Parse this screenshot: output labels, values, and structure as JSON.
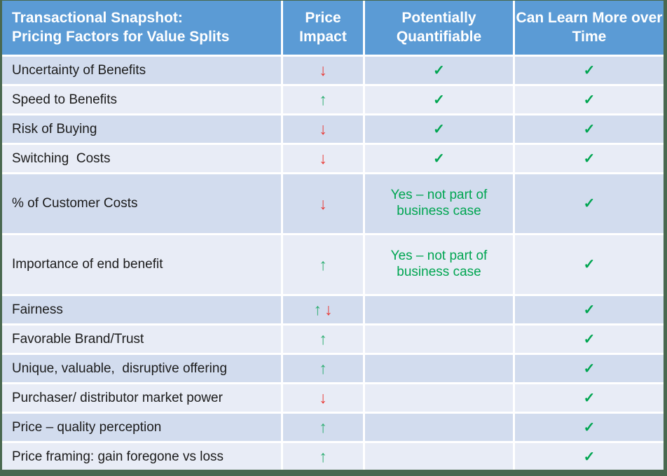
{
  "colors": {
    "header_blue": "#5B9BD5",
    "band_dark": "#D2DCEE",
    "band_light": "#E8ECF6",
    "green_text": "#00A551",
    "arrow_green": "#2EAE72",
    "arrow_red": "#E93B36",
    "frame_green": "#49684F"
  },
  "table": {
    "check_glyph": "✓",
    "header": {
      "factor": "Transactional Snapshot:\nPricing Factors for Value Splits",
      "price_impact": "Price Impact",
      "quantifiable": "Potentially Quantifiable",
      "learn_more": "Can Learn More over Time"
    },
    "rows": [
      {
        "factor": "Uncertainty of Benefits",
        "impact": [
          {
            "glyph": "↓",
            "tone": "red"
          }
        ],
        "quantifiable": "check",
        "learn_more": "check"
      },
      {
        "factor": "Speed to Benefits",
        "impact": [
          {
            "glyph": "↑",
            "tone": "green"
          }
        ],
        "quantifiable": "check",
        "learn_more": "check"
      },
      {
        "factor": "Risk of Buying",
        "impact": [
          {
            "glyph": "↓",
            "tone": "red"
          }
        ],
        "quantifiable": "check",
        "learn_more": "check"
      },
      {
        "factor": "Switching  Costs",
        "impact": [
          {
            "glyph": "↓",
            "tone": "red"
          }
        ],
        "quantifiable": "check",
        "learn_more": "check"
      },
      {
        "factor": "% of Customer Costs",
        "impact": [
          {
            "glyph": "↓",
            "tone": "red"
          }
        ],
        "quantifiable": "Yes – not part of business case",
        "learn_more": "check",
        "tall": true
      },
      {
        "factor": "Importance of end benefit",
        "impact": [
          {
            "glyph": "↑",
            "tone": "green"
          }
        ],
        "quantifiable": "Yes – not part of business case",
        "learn_more": "check",
        "tall": true
      },
      {
        "factor": "Fairness",
        "impact": [
          {
            "glyph": "↑",
            "tone": "green"
          },
          {
            "glyph": "↓",
            "tone": "red"
          }
        ],
        "quantifiable": "",
        "learn_more": "check"
      },
      {
        "factor": "Favorable Brand/Trust",
        "impact": [
          {
            "glyph": "↑",
            "tone": "green"
          }
        ],
        "quantifiable": "",
        "learn_more": "check"
      },
      {
        "factor": "Unique, valuable,  disruptive offering",
        "impact": [
          {
            "glyph": "↑",
            "tone": "green"
          }
        ],
        "quantifiable": "",
        "learn_more": "check"
      },
      {
        "factor": "Purchaser/ distributor market power",
        "impact": [
          {
            "glyph": "↓",
            "tone": "red"
          }
        ],
        "quantifiable": "",
        "learn_more": "check"
      },
      {
        "factor": "Price – quality perception",
        "impact": [
          {
            "glyph": "↑",
            "tone": "green"
          }
        ],
        "quantifiable": "",
        "learn_more": "check"
      },
      {
        "factor": "Price framing: gain foregone vs loss",
        "impact": [
          {
            "glyph": "↑",
            "tone": "green"
          }
        ],
        "quantifiable": "",
        "learn_more": "check"
      }
    ]
  }
}
